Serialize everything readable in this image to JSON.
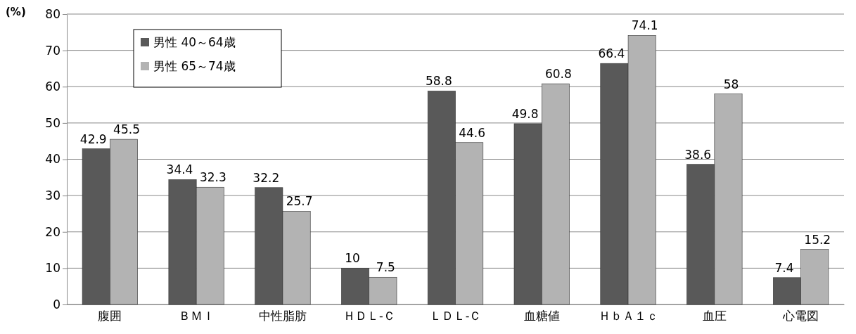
{
  "chart_data": {
    "type": "bar",
    "ylabel": "(%)",
    "categories": [
      "腹囲",
      "ＢＭＩ",
      "中性脂肪",
      "ＨＤＬ-Ｃ",
      "ＬＤＬ-Ｃ",
      "血糖値",
      "ＨｂＡ１ｃ",
      "血圧",
      "心電図"
    ],
    "series": [
      {
        "name": "男性 40～64歳",
        "color": "#595959",
        "values": [
          42.9,
          34.4,
          32.2,
          10,
          58.8,
          49.8,
          66.4,
          38.6,
          7.4
        ]
      },
      {
        "name": "男性 65～74歳",
        "color": "#b3b3b3",
        "values": [
          45.5,
          32.3,
          25.7,
          7.5,
          44.6,
          60.8,
          74.1,
          58,
          15.2
        ]
      }
    ],
    "ylim": [
      0,
      80
    ],
    "yticks": [
      0,
      10,
      20,
      30,
      40,
      50,
      60,
      70,
      80
    ],
    "grid": "y",
    "legend": "top left",
    "data_labels": true
  }
}
